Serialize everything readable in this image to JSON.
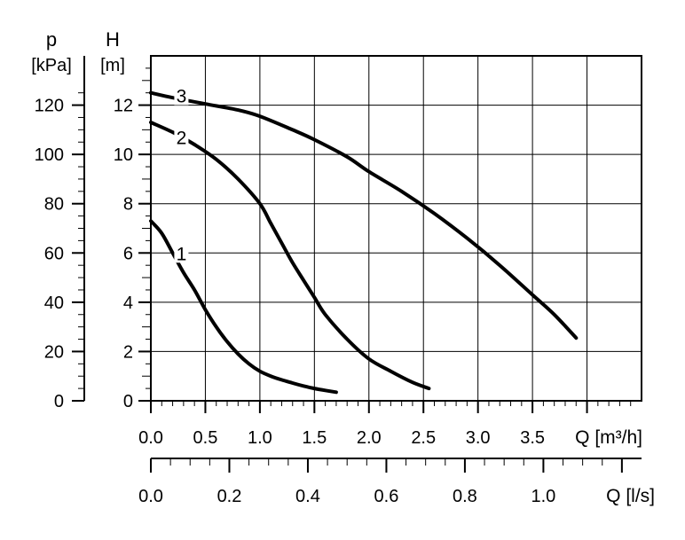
{
  "chart_data": {
    "type": "line",
    "x_unit_primary": "Q [m³/h]",
    "x_unit_secondary": "Q [l/s]",
    "y_left_symbol": "p",
    "y_left_unit": "[kPa]",
    "y_right_symbol": "H",
    "y_right_unit": "[m]",
    "xlim": [
      0,
      4.5
    ],
    "ylim": [
      0,
      14
    ],
    "grid": true,
    "x_ticks_primary": [
      0.0,
      0.5,
      1.0,
      1.5,
      2.0,
      2.5,
      3.0,
      3.5
    ],
    "x_tick_labels_primary": [
      "0.0",
      "0.5",
      "1.0",
      "1.5",
      "2.0",
      "2.5",
      "3.0",
      "3.5"
    ],
    "x_ticks_secondary": [
      0.0,
      0.2,
      0.4,
      0.6,
      0.8,
      1.0
    ],
    "x_tick_labels_secondary": [
      "0.0",
      "0.2",
      "0.4",
      "0.6",
      "0.8",
      "1.0"
    ],
    "x_secondary_max": 1.25,
    "y_left_ticks": [
      0,
      20,
      40,
      60,
      80,
      100,
      120
    ],
    "y_left_tick_labels": [
      "0",
      "20",
      "40",
      "60",
      "80",
      "100",
      "120"
    ],
    "y_right_ticks": [
      0,
      2,
      4,
      6,
      8,
      10,
      12
    ],
    "y_right_tick_labels": [
      "0",
      "2",
      "4",
      "6",
      "8",
      "10",
      "12"
    ],
    "series": [
      {
        "name": "1",
        "label_at": [
          0.28,
          6.0
        ],
        "points": [
          [
            0.0,
            7.3
          ],
          [
            0.1,
            6.8
          ],
          [
            0.2,
            6.0
          ],
          [
            0.3,
            5.2
          ],
          [
            0.4,
            4.5
          ],
          [
            0.5,
            3.7
          ],
          [
            0.6,
            3.0
          ],
          [
            0.7,
            2.4
          ],
          [
            0.8,
            1.9
          ],
          [
            0.9,
            1.5
          ],
          [
            1.0,
            1.2
          ],
          [
            1.1,
            1.0
          ],
          [
            1.2,
            0.85
          ],
          [
            1.3,
            0.72
          ],
          [
            1.4,
            0.6
          ],
          [
            1.5,
            0.5
          ],
          [
            1.6,
            0.42
          ],
          [
            1.7,
            0.35
          ]
        ]
      },
      {
        "name": "2",
        "label_at": [
          0.28,
          10.7
        ],
        "points": [
          [
            0.0,
            11.3
          ],
          [
            0.2,
            10.9
          ],
          [
            0.4,
            10.4
          ],
          [
            0.6,
            9.8
          ],
          [
            0.8,
            9.0
          ],
          [
            1.0,
            8.0
          ],
          [
            1.1,
            7.2
          ],
          [
            1.2,
            6.4
          ],
          [
            1.3,
            5.6
          ],
          [
            1.4,
            4.9
          ],
          [
            1.5,
            4.2
          ],
          [
            1.6,
            3.5
          ],
          [
            1.8,
            2.5
          ],
          [
            2.0,
            1.7
          ],
          [
            2.2,
            1.2
          ],
          [
            2.4,
            0.75
          ],
          [
            2.55,
            0.5
          ]
        ]
      },
      {
        "name": "3",
        "label_at": [
          0.28,
          12.4
        ],
        "points": [
          [
            0.0,
            12.5
          ],
          [
            0.2,
            12.3
          ],
          [
            0.5,
            12.05
          ],
          [
            0.8,
            11.8
          ],
          [
            1.0,
            11.55
          ],
          [
            1.3,
            11.0
          ],
          [
            1.5,
            10.6
          ],
          [
            1.8,
            9.9
          ],
          [
            2.0,
            9.3
          ],
          [
            2.3,
            8.5
          ],
          [
            2.6,
            7.6
          ],
          [
            2.9,
            6.6
          ],
          [
            3.2,
            5.5
          ],
          [
            3.5,
            4.3
          ],
          [
            3.7,
            3.5
          ],
          [
            3.9,
            2.55
          ]
        ]
      }
    ]
  }
}
